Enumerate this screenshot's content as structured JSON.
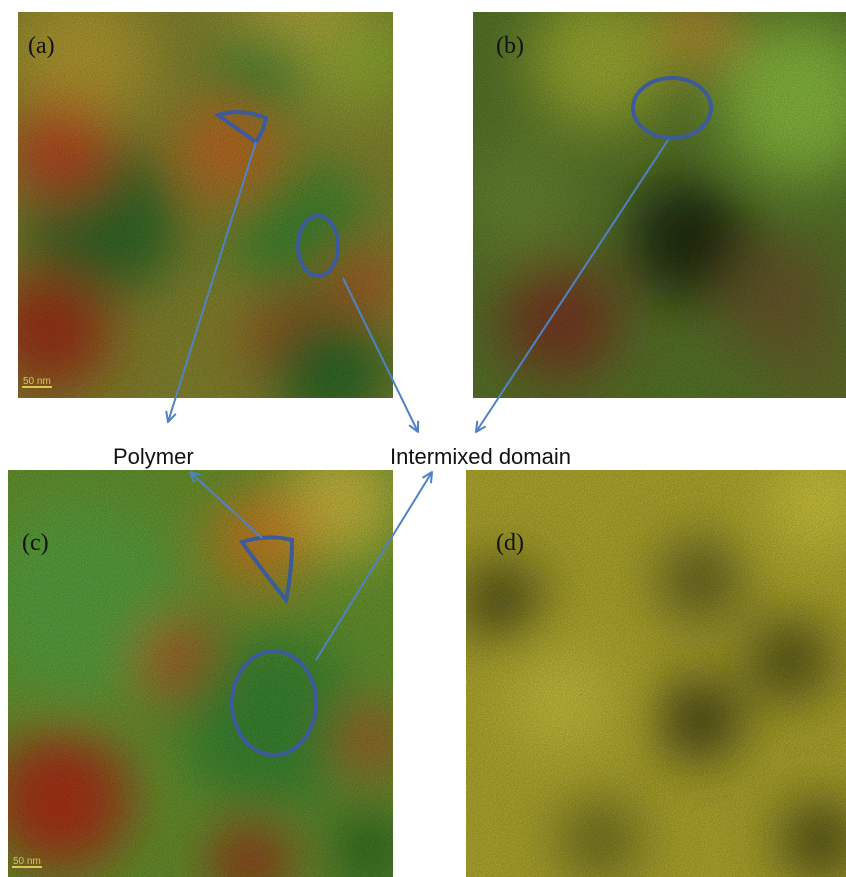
{
  "panels": [
    {
      "label": "(a)",
      "scale_bar": "50 nm"
    },
    {
      "label": "(b)"
    },
    {
      "label": "(c)",
      "scale_bar": "50 nm"
    },
    {
      "label": "(d)"
    }
  ],
  "annotations": {
    "polymer": "Polymer",
    "intermixed": "Intermixed domain"
  }
}
